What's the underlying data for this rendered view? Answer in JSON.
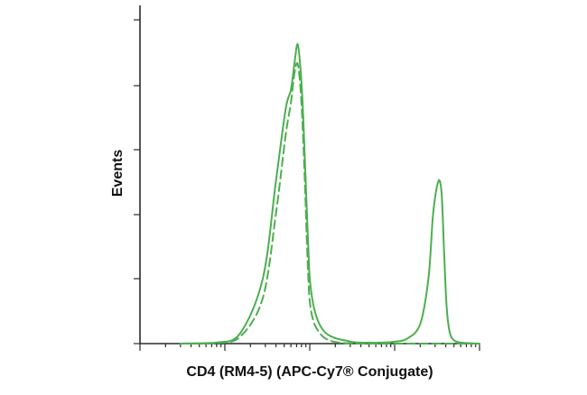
{
  "chart_data": {
    "type": "line",
    "title": "",
    "xlabel": "CD4 (RM4-5) (APC-Cy7® Conjugate)",
    "ylabel": "Events",
    "x_scale": "log",
    "xlim": [
      10,
      100000
    ],
    "ylim": [
      0,
      100
    ],
    "grid": false,
    "legend": "none",
    "series": [
      {
        "style": "solid",
        "color": "#4caf50",
        "x": [
          30,
          80,
          150,
          280,
          400,
          520,
          600,
          660,
          720,
          780,
          830,
          880,
          920,
          960,
          1000,
          1100,
          1250,
          1450,
          1700,
          2100,
          2600,
          3200,
          4000,
          5000,
          7000,
          10000,
          14000,
          20000,
          25000,
          28000,
          30000,
          32000,
          34000,
          36000,
          38000,
          40000,
          42000,
          45000,
          50000,
          60000,
          80000,
          100000
        ],
        "y": [
          0,
          0.3,
          3,
          20,
          50,
          72,
          78,
          86,
          92,
          84,
          72,
          55,
          42,
          30,
          20,
          12,
          7,
          4,
          2.5,
          1.5,
          1,
          0.5,
          0.3,
          0.3,
          0.3,
          0.6,
          1.5,
          6,
          20,
          38,
          45,
          49,
          50,
          45,
          30,
          16,
          8,
          3,
          1,
          0.3,
          0.1,
          0
        ]
      },
      {
        "style": "dashed",
        "color": "#4caf50",
        "x": [
          30,
          80,
          150,
          280,
          400,
          520,
          600,
          660,
          720,
          780,
          830,
          880,
          920,
          960,
          1000,
          1100,
          1250,
          1450,
          1700,
          2000,
          2500,
          3500,
          5000,
          10000,
          100000
        ],
        "y": [
          0,
          0.2,
          2,
          14,
          40,
          64,
          74,
          83,
          86,
          78,
          65,
          48,
          33,
          21,
          13,
          7,
          4,
          2,
          1,
          0.5,
          0.2,
          0.1,
          0,
          0,
          0
        ]
      }
    ]
  }
}
